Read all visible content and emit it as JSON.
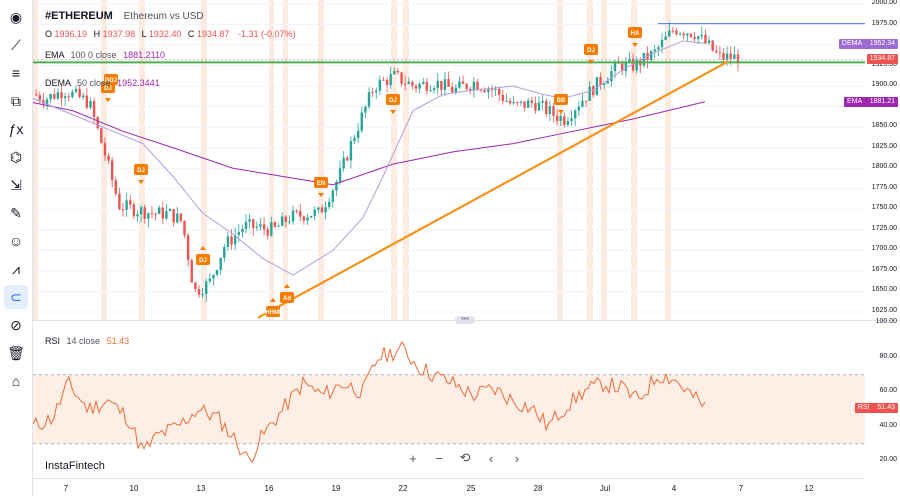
{
  "toolbar": {
    "items": [
      {
        "name": "cursor-tool",
        "glyph": "◉"
      },
      {
        "name": "trendline-tool",
        "glyph": "⟋"
      },
      {
        "name": "fib-tool",
        "glyph": "≡"
      },
      {
        "name": "pattern-tool",
        "glyph": "⧉"
      },
      {
        "name": "forecast-tool",
        "glyph": "ƒx"
      },
      {
        "name": "shapes-tool",
        "glyph": "⌬"
      },
      {
        "name": "measure-tool",
        "glyph": "⇲"
      },
      {
        "name": "brush-tool",
        "glyph": "✎"
      },
      {
        "name": "emoji-tool",
        "glyph": "☺"
      },
      {
        "name": "ruler-tool",
        "glyph": "⩘"
      },
      {
        "name": "magnet-tool",
        "glyph": "⊂"
      },
      {
        "name": "hide-tool",
        "glyph": "⊘"
      },
      {
        "name": "trash-tool",
        "glyph": "🗑"
      },
      {
        "name": "home-tool",
        "glyph": "⌂"
      }
    ]
  },
  "legend": {
    "symbol": "#ETHEREUM",
    "description": "Ethereum vs USD",
    "o_label": "O",
    "o_value": "1936.19",
    "h_label": "H",
    "h_value": "1937.98",
    "l_label": "L",
    "l_value": "1932.40",
    "c_label": "C",
    "c_value": "1934.87",
    "change": "-1.31 (-0.07%)",
    "ema_label": "EMA",
    "ema_params": "100  0  close",
    "ema_value": "1881.2110",
    "dema_label": "DEMA",
    "dema_params": "50  close",
    "dema_value": "1952.3441",
    "rsi_label": "RSI",
    "rsi_params": "14  close",
    "rsi_value": "51.43"
  },
  "price_axis": {
    "ticks": [
      "2000.00",
      "1975.00",
      "1950.00",
      "1925.00",
      "1900.00",
      "1875.00",
      "1850.00",
      "1825.00",
      "1800.00",
      "1775.00",
      "1750.00",
      "1725.00",
      "1700.00",
      "1675.00",
      "1650.00",
      "1625.00"
    ],
    "tag_dema_label": "DEMA",
    "tag_dema_value": "1952.34",
    "tag_price": "1934.87",
    "tag_ema_label": "EMA",
    "tag_ema_value": "1881.21"
  },
  "rsi_axis": {
    "ticks": [
      "100.00",
      "80.00",
      "60.00",
      "40.00",
      "20.00"
    ],
    "tag_label": "RSI",
    "tag_value": "51.43"
  },
  "time_axis": {
    "labels": [
      "7",
      "10",
      "13",
      "16",
      "19",
      "22",
      "25",
      "28",
      "Jul",
      "4",
      "7",
      "12"
    ]
  },
  "markers": [
    "DJ",
    "DJ",
    "DJ",
    "EN",
    "DJ",
    "BB",
    "DJ",
    "HA",
    "DDJ",
    "HHMI",
    "Ad"
  ],
  "brand": "InstaFintech",
  "nav": {
    "zoom_in": "+",
    "zoom_out": "−",
    "reset": "⟲",
    "back": "‹",
    "forward": "›"
  },
  "colors": {
    "up": "#26a69a",
    "down": "#ef5350",
    "ema": "#9c27b0",
    "dema": "#b39ddb",
    "trend": "#f7931a",
    "support": "#4caf50",
    "rsi": "#ef6c3a",
    "marker": "#f57c00"
  },
  "chart_data": {
    "type": "candlestick",
    "price_axis_range": [
      1625,
      2000
    ],
    "rsi_range": [
      20,
      100
    ],
    "rsi_bands": [
      30,
      70
    ],
    "horizontal_levels": [
      1929,
      1976
    ],
    "last": {
      "open": 1936.19,
      "high": 1937.98,
      "low": 1932.4,
      "close": 1934.87
    },
    "ema_100_last": 1881.21,
    "dema_50_last": 1952.34,
    "rsi_14_last": 51.43
  }
}
